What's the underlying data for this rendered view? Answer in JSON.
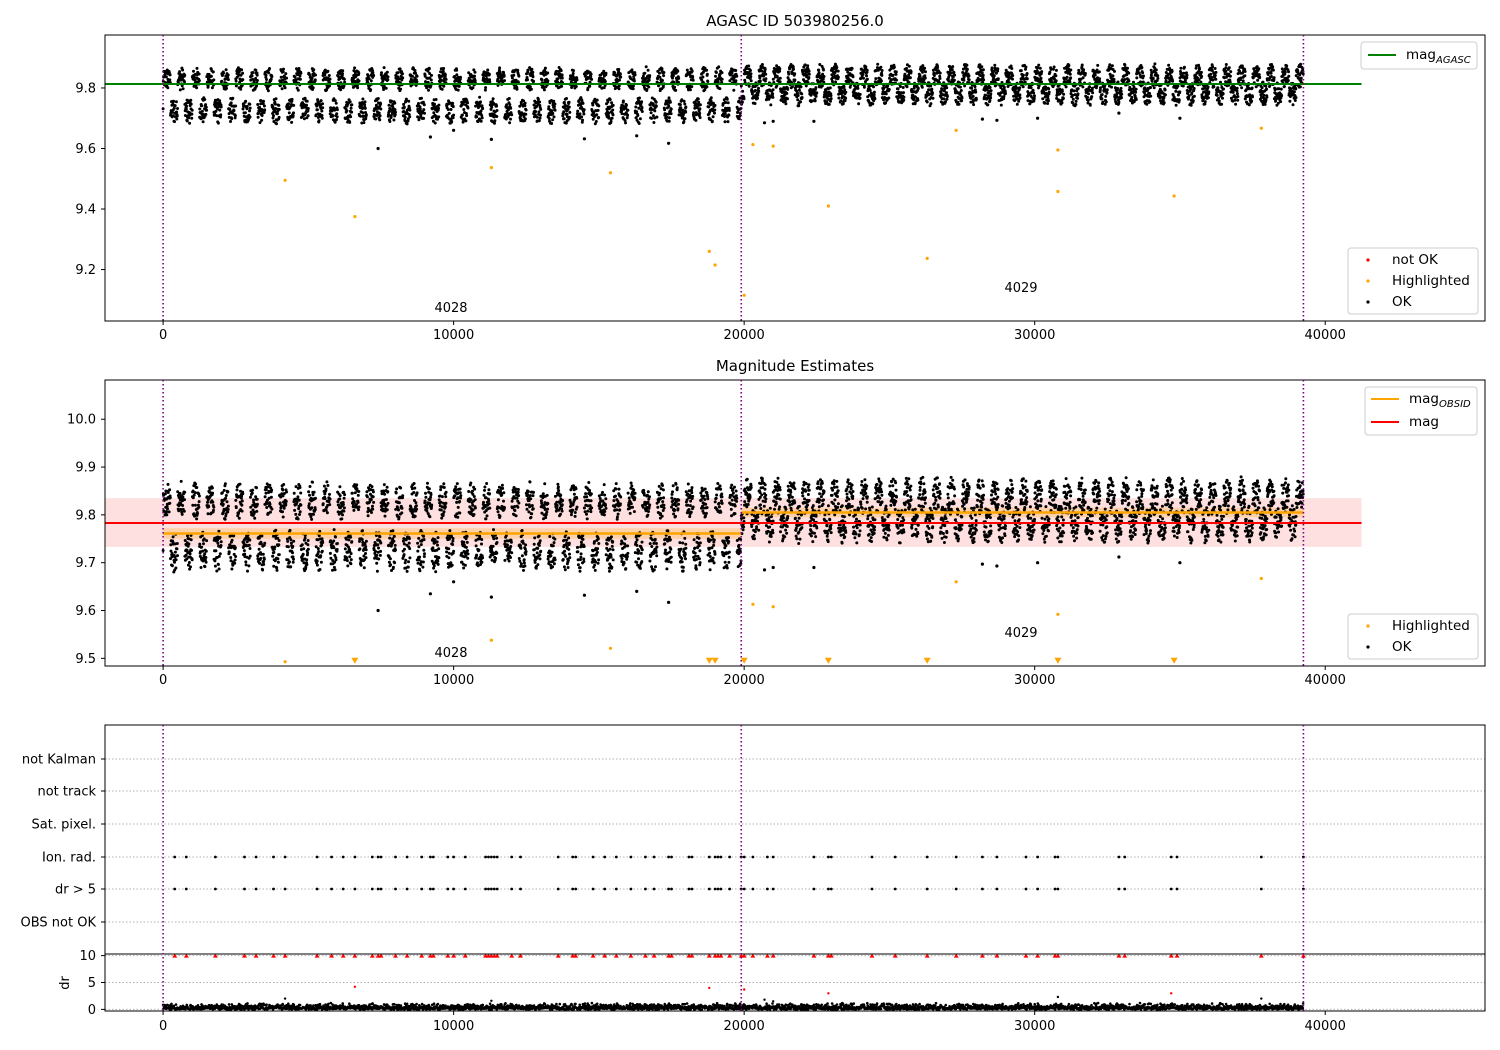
{
  "chart_data": [
    {
      "type": "scatter",
      "title": "AGASC ID 503980256.0",
      "xlim": [
        -2000,
        45500
      ],
      "ylim": [
        9.03,
        9.975
      ],
      "x_ticks": [
        0,
        10000,
        20000,
        30000,
        40000
      ],
      "x_tick_labels": [
        "0",
        "10000",
        "20000",
        "30000",
        "40000"
      ],
      "y_ticks": [
        9.2,
        9.4,
        9.6,
        9.8
      ],
      "y_tick_labels": [
        "9.2",
        "9.4",
        "9.6",
        "9.8"
      ],
      "obs_boundaries": [
        0,
        19900,
        39250
      ],
      "annotations": [
        {
          "text": "4028",
          "x": 9900,
          "y": 9.075
        },
        {
          "text": "4029",
          "x": 29600,
          "y": 9.14
        }
      ],
      "lines": [
        {
          "name": "mag_{AGASC}",
          "color": "#008000",
          "y": 9.813,
          "x_range": [
            -2000,
            41250
          ]
        }
      ],
      "ok_bands": [
        {
          "x_range": [
            0,
            19900
          ],
          "upper": [
            9.79,
            9.87
          ],
          "lower": [
            9.68,
            9.77
          ],
          "period": 500
        },
        {
          "x_range": [
            19900,
            39250
          ],
          "upper": [
            9.8,
            9.88
          ],
          "lower": [
            9.74,
            9.82
          ],
          "period": 500
        }
      ],
      "series": [
        {
          "name": "not OK",
          "color": "#ff0000",
          "points": []
        },
        {
          "name": "Highlighted",
          "color": "#ffa500",
          "points": [
            [
              4200,
              9.495
            ],
            [
              6600,
              9.375
            ],
            [
              11300,
              9.537
            ],
            [
              15400,
              9.52
            ],
            [
              18800,
              9.26
            ],
            [
              19000,
              9.215
            ],
            [
              20000,
              9.115
            ],
            [
              20300,
              9.613
            ],
            [
              21000,
              9.608
            ],
            [
              22900,
              9.41
            ],
            [
              26300,
              9.237
            ],
            [
              27300,
              9.66
            ],
            [
              30800,
              9.595
            ],
            [
              30800,
              9.458
            ],
            [
              34800,
              9.443
            ],
            [
              37800,
              9.667
            ]
          ]
        },
        {
          "name": "OK",
          "color": "#000000",
          "points": [
            [
              7400,
              9.6
            ],
            [
              9200,
              9.638
            ],
            [
              10000,
              9.66
            ],
            [
              11300,
              9.63
            ],
            [
              14500,
              9.632
            ],
            [
              16300,
              9.642
            ],
            [
              17400,
              9.617
            ],
            [
              20700,
              9.685
            ],
            [
              21000,
              9.69
            ],
            [
              22400,
              9.69
            ],
            [
              28200,
              9.697
            ],
            [
              28700,
              9.693
            ],
            [
              30100,
              9.7
            ],
            [
              32900,
              9.717
            ],
            [
              35000,
              9.7
            ]
          ]
        }
      ],
      "legends": [
        {
          "position": "upper-right",
          "entries": [
            {
              "label": "mag",
              "sub": "AGASC",
              "style": "line",
              "color": "#008000"
            }
          ]
        },
        {
          "position": "lower-right",
          "entries": [
            {
              "label": "not OK",
              "style": "dot",
              "color": "#ff0000"
            },
            {
              "label": "Highlighted",
              "style": "dot",
              "color": "#ffa500"
            },
            {
              "label": "OK",
              "style": "dot",
              "color": "#000000"
            }
          ]
        }
      ]
    },
    {
      "type": "scatter",
      "title": "Magnitude Estimates",
      "xlim": [
        -2000,
        45500
      ],
      "ylim": [
        9.484,
        10.082
      ],
      "x_ticks": [
        0,
        10000,
        20000,
        30000,
        40000
      ],
      "x_tick_labels": [
        "0",
        "10000",
        "20000",
        "30000",
        "40000"
      ],
      "y_ticks": [
        9.5,
        9.6,
        9.7,
        9.8,
        9.9,
        10.0
      ],
      "y_tick_labels": [
        "9.5",
        "9.6",
        "9.7",
        "9.8",
        "9.9",
        "10.0"
      ],
      "obs_boundaries": [
        0,
        19900,
        39250
      ],
      "annotations": [
        {
          "text": "4028",
          "x": 9900,
          "y": 9.5
        },
        {
          "text": "4029",
          "x": 29600,
          "y": 9.545
        }
      ],
      "mag": {
        "value": 9.783,
        "band": [
          9.733,
          9.835
        ],
        "x_range": [
          -2000,
          41250
        ],
        "color": "#ff0000"
      },
      "mag_obsid": [
        {
          "x_range": [
            0,
            19900
          ],
          "value": 9.761,
          "band": [
            9.75,
            9.772
          ]
        },
        {
          "x_range": [
            19900,
            39250
          ],
          "value": 9.805,
          "band": [
            9.795,
            9.815
          ]
        }
      ],
      "ok_bands": [
        {
          "x_range": [
            0,
            19900
          ],
          "upper": [
            9.79,
            9.87
          ],
          "lower": [
            9.68,
            9.77
          ],
          "period": 500
        },
        {
          "x_range": [
            19900,
            39250
          ],
          "upper": [
            9.8,
            9.88
          ],
          "lower": [
            9.74,
            9.82
          ],
          "period": 500
        }
      ],
      "series": [
        {
          "name": "Highlighted",
          "color": "#ffa500",
          "points": [
            [
              4200,
              9.493
            ],
            [
              11300,
              9.538
            ],
            [
              15400,
              9.521
            ],
            [
              20300,
              9.613
            ],
            [
              21000,
              9.608
            ],
            [
              27300,
              9.66
            ],
            [
              30800,
              9.592
            ],
            [
              37800,
              9.667
            ]
          ]
        },
        {
          "name": "Highlighted (clipped)",
          "color": "#ffa500",
          "marker": "triangle-down",
          "points": [
            [
              6600,
              9.495
            ],
            [
              18800,
              9.495
            ],
            [
              19000,
              9.495
            ],
            [
              20000,
              9.495
            ],
            [
              22900,
              9.495
            ],
            [
              26300,
              9.495
            ],
            [
              30800,
              9.495
            ],
            [
              34800,
              9.495
            ]
          ]
        },
        {
          "name": "OK",
          "color": "#000000",
          "points": [
            [
              7400,
              9.6
            ],
            [
              9200,
              9.635
            ],
            [
              10000,
              9.66
            ],
            [
              11300,
              9.628
            ],
            [
              14500,
              9.632
            ],
            [
              16300,
              9.64
            ],
            [
              17400,
              9.617
            ],
            [
              20700,
              9.685
            ],
            [
              21000,
              9.69
            ],
            [
              22400,
              9.69
            ],
            [
              28200,
              9.697
            ],
            [
              28700,
              9.693
            ],
            [
              30100,
              9.7
            ],
            [
              32900,
              9.712
            ],
            [
              35000,
              9.7
            ]
          ]
        }
      ],
      "legends": [
        {
          "position": "upper-right",
          "entries": [
            {
              "label": "mag",
              "sub": "OBSID",
              "style": "line",
              "color": "#ffa500"
            },
            {
              "label": "mag",
              "style": "line",
              "color": "#ff0000"
            }
          ]
        },
        {
          "position": "lower-right",
          "entries": [
            {
              "label": "Highlighted",
              "style": "dot",
              "color": "#ffa500"
            },
            {
              "label": "OK",
              "style": "dot",
              "color": "#000000"
            }
          ]
        }
      ]
    },
    {
      "type": "scatter",
      "title": "",
      "xlim": [
        -2000,
        45500
      ],
      "categories": [
        "not Kalman",
        "not track",
        "Sat. pixel.",
        "Ion. rad.",
        "dr > 5",
        "OBS not OK"
      ],
      "obs_boundaries": [
        0,
        19900,
        39250
      ],
      "flag_events_x": [
        400,
        800,
        1800,
        2800,
        3200,
        3800,
        4200,
        5300,
        5800,
        6200,
        6600,
        7200,
        7400,
        7500,
        8000,
        8400,
        8900,
        9200,
        9300,
        9800,
        10000,
        10400,
        11100,
        11200,
        11300,
        11400,
        11500,
        12000,
        12300,
        13600,
        14100,
        14200,
        14800,
        15200,
        15600,
        16100,
        16600,
        16900,
        17400,
        17500,
        18100,
        18200,
        18800,
        19000,
        19100,
        19200,
        19500,
        19900,
        20000,
        20300,
        20800,
        21000,
        22400,
        22900,
        23000,
        24400,
        25200,
        26300,
        27300,
        28200,
        28700,
        29700,
        30100,
        30700,
        30800,
        32900,
        33100,
        34700,
        34900,
        37800,
        39250
      ],
      "ion_rad_x": "flag_events_x",
      "dr_gt_5_x": "flag_events_x",
      "dr_panel": {
        "ylabel": "dr",
        "ylim": [
          -0.3,
          10.3
        ],
        "y_ticks": [
          0,
          5,
          10
        ],
        "y_tick_labels": [
          "0",
          "5",
          "10"
        ],
        "baseline": [
          0,
          1.2
        ],
        "clipped_value": 10,
        "clipped_color": "#ff0000",
        "outliers": [
          [
            6600,
            4.2
          ],
          [
            18800,
            4.0
          ],
          [
            20000,
            3.7
          ],
          [
            22900,
            3.0
          ],
          [
            34700,
            3.0
          ],
          [
            4200,
            2.0
          ],
          [
            30800,
            2.3
          ],
          [
            37800,
            2.0
          ],
          [
            20700,
            1.8
          ],
          [
            21000,
            1.5
          ],
          [
            11300,
            1.6
          ]
        ]
      }
    }
  ]
}
